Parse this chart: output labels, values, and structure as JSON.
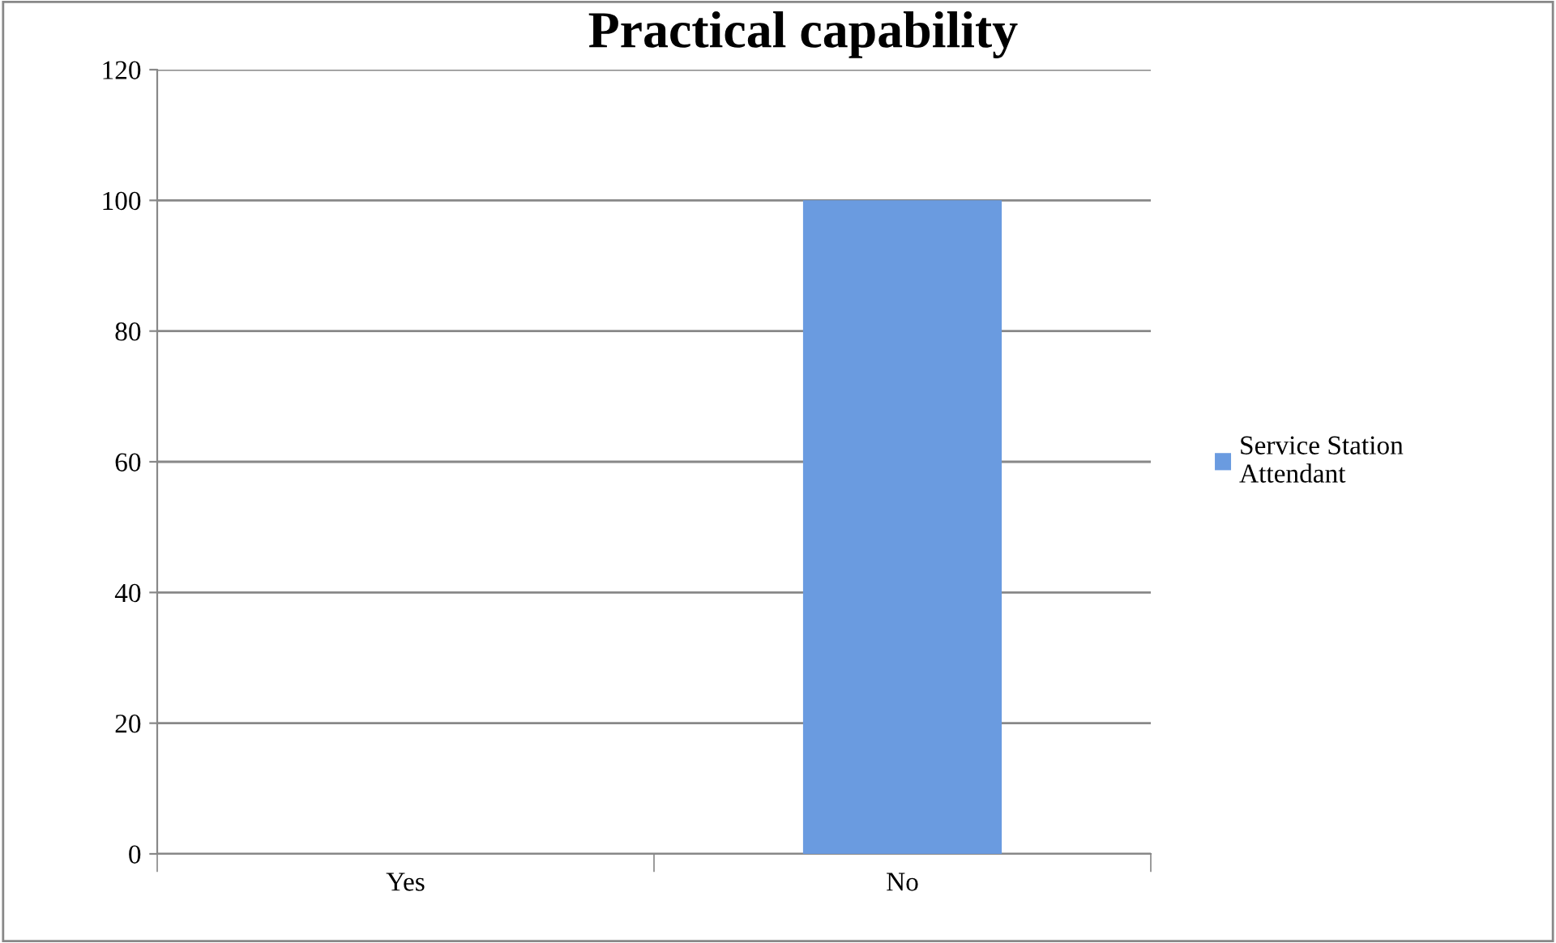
{
  "chart_data": {
    "type": "bar",
    "title": "Practical capability",
    "categories": [
      "Yes",
      "No"
    ],
    "series": [
      {
        "name": "Service Station Attendant",
        "color": "#6a9be0",
        "values": [
          0,
          100
        ]
      }
    ],
    "ylim": [
      0,
      120
    ],
    "yticks": [
      0,
      20,
      40,
      60,
      80,
      100,
      120
    ],
    "grid": "y",
    "legend": "right"
  }
}
